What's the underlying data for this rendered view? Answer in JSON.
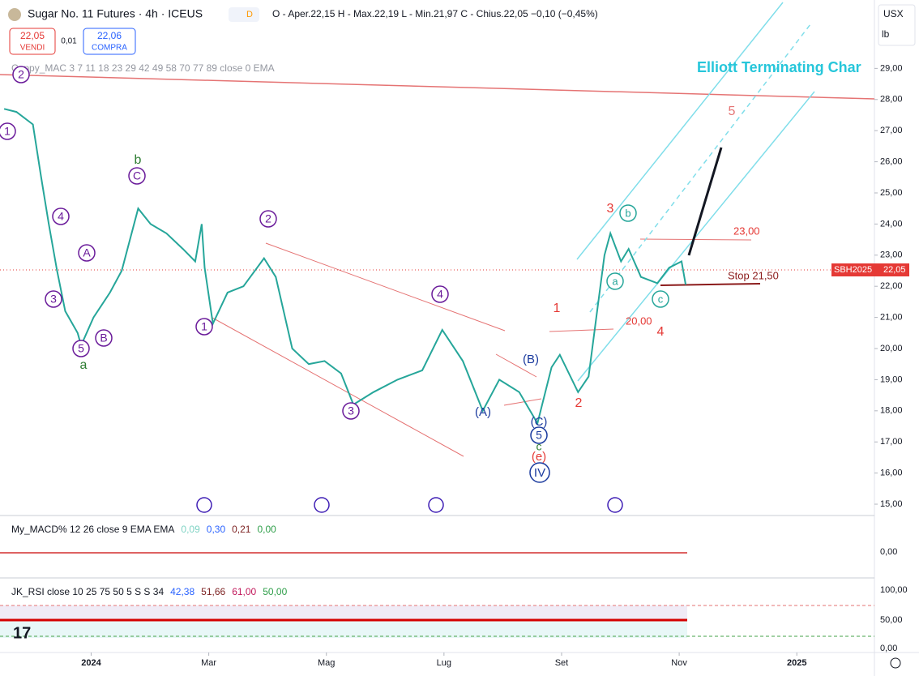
{
  "header": {
    "title": "Sugar No. 11 Futures · 4h · ICEUS",
    "badge": "D",
    "ohlc": "O - Aper.22,15 H - Max.22,19 L - Min.21,97 C - Chius.22,05 −0,10 (−0,45%)",
    "sell_price": "22,05",
    "sell_label": "VENDI",
    "spread": "0,01",
    "buy_price": "22,06",
    "buy_label": "COMPRA",
    "currency": "USX",
    "unit": "lb"
  },
  "indicator": "Coppy_MAC 3 7 11 18 23 29 42 49 58 70 77 89 close 0 EMA",
  "price_tag": {
    "symbol": "SBH2025",
    "price": "22,05"
  },
  "macd": {
    "title": "My_MACD% 12 26 close 9 EMA EMA",
    "values": [
      "0,09",
      "0,30",
      "0,21",
      "0,00"
    ],
    "colors": [
      "#7fd3c4",
      "#2962ff",
      "#7b1f1f",
      "#2e9e49"
    ],
    "axis": "0,00"
  },
  "rsi": {
    "title": "JK_RSI close 10 25 75 50 5 S S 34",
    "values": [
      "42,38",
      "51,66",
      "61,00",
      "50,00"
    ],
    "colors": [
      "#2962ff",
      "#7b1f1f",
      "#c2185b",
      "#2e9e49"
    ],
    "axis": [
      "100,00",
      "50,00",
      "0,00"
    ]
  },
  "chart_data": {
    "type": "line",
    "color": "#26a69a",
    "x": [
      -1.48,
      -1.27,
      -0.99,
      -0.85,
      -0.72,
      -0.58,
      -0.44,
      -0.23,
      -0.17,
      0.04,
      0.32,
      0.52,
      0.8,
      1.01,
      1.28,
      1.56,
      1.77,
      1.88,
      1.93,
      2.07,
      2.32,
      2.59,
      2.94,
      3.14,
      3.42,
      3.7,
      3.97,
      4.25,
      4.46,
      4.8,
      5.21,
      5.63,
      5.97,
      6.32,
      6.66,
      6.94,
      7.28,
      7.59,
      7.83,
      7.97,
      8.28,
      8.46,
      8.59,
      8.73,
      8.83,
      9.01,
      9.14,
      9.35,
      9.63,
      9.83,
      10.04,
      10.11
    ],
    "values": [
      27.7,
      27.6,
      27.2,
      25.5,
      24.0,
      22.5,
      21.2,
      20.5,
      20.1,
      21.0,
      21.8,
      22.5,
      24.5,
      24.0,
      23.7,
      23.2,
      22.8,
      24.0,
      22.6,
      20.8,
      21.8,
      22.0,
      22.9,
      22.3,
      20.0,
      19.5,
      19.6,
      19.2,
      18.2,
      18.6,
      19.0,
      19.3,
      20.6,
      19.6,
      18.0,
      19.0,
      18.6,
      17.6,
      19.4,
      19.8,
      18.6,
      19.1,
      21.0,
      23.0,
      23.7,
      22.8,
      23.2,
      22.3,
      22.1,
      22.6,
      22.8,
      22.05
    ],
    "xlim": [
      -1.55,
      13.32
    ],
    "ylim": [
      14.35,
      30.65
    ],
    "xticks": [
      {
        "value": 0,
        "label": "2024"
      },
      {
        "value": 2,
        "label": "Mar"
      },
      {
        "value": 4,
        "label": "Mag"
      },
      {
        "value": 6,
        "label": "Lug"
      },
      {
        "value": 8,
        "label": "Set"
      },
      {
        "value": 10,
        "label": "Nov"
      },
      {
        "value": 12,
        "label": "2025"
      }
    ],
    "yticks": [
      {
        "value": 15,
        "label": "15,00"
      },
      {
        "value": 16,
        "label": "16,00"
      },
      {
        "value": 17,
        "label": "17,00"
      },
      {
        "value": 18,
        "label": "18,00"
      },
      {
        "value": 19,
        "label": "19,00"
      },
      {
        "value": 20,
        "label": "20,00"
      },
      {
        "value": 21,
        "label": "21,00"
      },
      {
        "value": 22,
        "label": "22,00"
      },
      {
        "value": 23,
        "label": "23,00"
      },
      {
        "value": 24,
        "label": "24,00"
      },
      {
        "value": 25,
        "label": "25,00"
      },
      {
        "value": 26,
        "label": "26,00"
      },
      {
        "value": 27,
        "label": "27,00"
      },
      {
        "value": 28,
        "label": "28,00"
      },
      {
        "value": 29,
        "label": "29,00"
      }
    ],
    "annotations": [
      {
        "text": "Elliott Terminating Char",
        "color": "#26c6da"
      },
      {
        "text": "5",
        "color": "#e57373"
      },
      {
        "text": "3",
        "color": "#e53935"
      },
      {
        "text": "b",
        "color": "#26a69a"
      },
      {
        "text": "23,00",
        "color": "#e53935"
      },
      {
        "text": "Stop 21,50",
        "color": "#8b1a1a"
      },
      {
        "text": "a",
        "color": "#26a69a"
      },
      {
        "text": "c",
        "color": "#26a69a"
      },
      {
        "text": "1",
        "color": "#e53935"
      },
      {
        "text": "20,00",
        "color": "#e53935"
      },
      {
        "text": "4",
        "color": "#e53935"
      },
      {
        "text": "2",
        "color": "#e53935"
      },
      {
        "text": "(B)",
        "color": "#1a3a9e"
      },
      {
        "text": "(A)",
        "color": "#1a3a9e"
      },
      {
        "text": "(C)",
        "color": "#1a3a9e"
      },
      {
        "text": "5",
        "color": "#1a3a9e"
      },
      {
        "text": "c",
        "color": "#2e7d32"
      },
      {
        "text": "(e)",
        "color": "#e53935"
      },
      {
        "text": "IV",
        "color": "#1a3a9e"
      },
      {
        "text": "4",
        "color": "#6a1b9a"
      },
      {
        "text": "2",
        "color": "#6a1b9a"
      },
      {
        "text": "1",
        "color": "#6a1b9a"
      },
      {
        "text": "3",
        "color": "#6a1b9a"
      },
      {
        "text": "b",
        "color": "#2e7d32"
      },
      {
        "text": "C",
        "color": "#6a1b9a"
      },
      {
        "text": "4",
        "color": "#6a1b9a"
      },
      {
        "text": "A",
        "color": "#6a1b9a"
      },
      {
        "text": "3",
        "color": "#6a1b9a"
      },
      {
        "text": "B",
        "color": "#6a1b9a"
      },
      {
        "text": "5",
        "color": "#6a1b9a"
      },
      {
        "text": "a",
        "color": "#2e7d32"
      },
      {
        "text": "1",
        "color": "#6a1b9a"
      },
      {
        "text": "2",
        "color": "#6a1b9a"
      }
    ]
  }
}
